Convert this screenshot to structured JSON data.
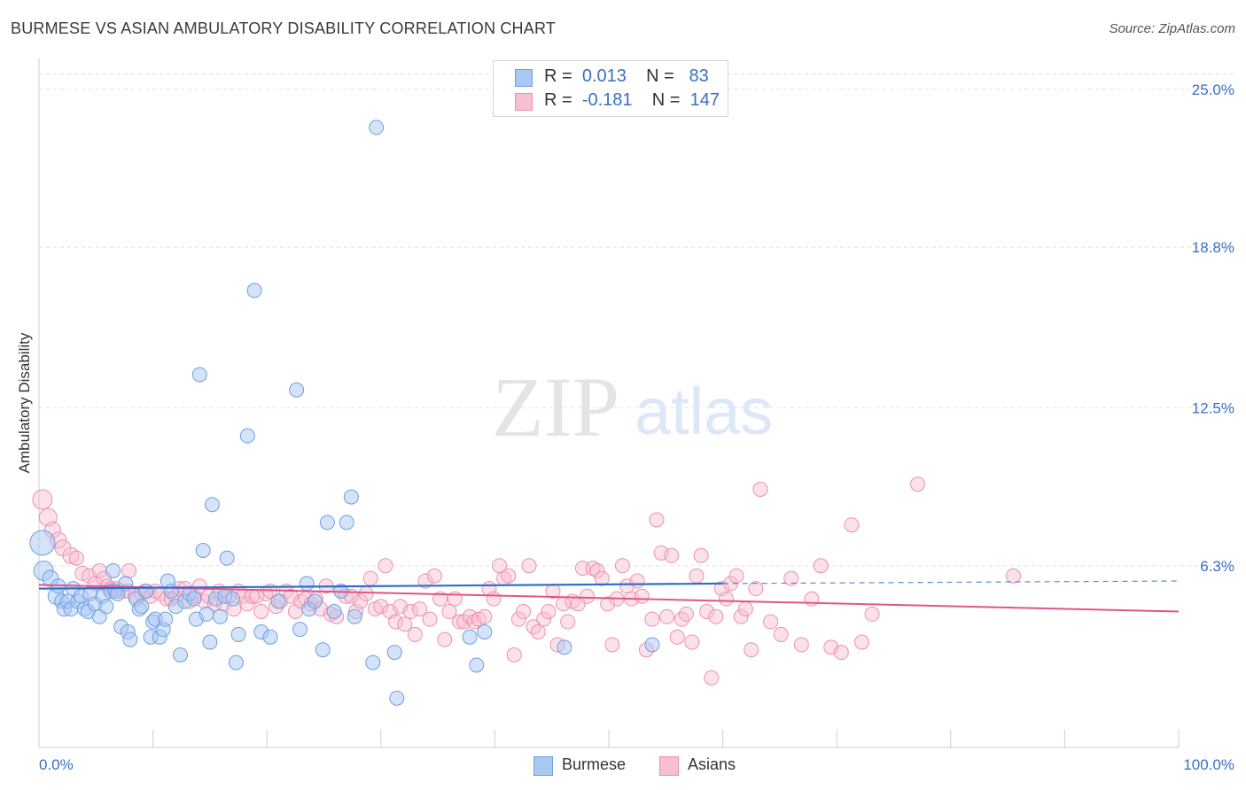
{
  "header": {
    "title": "BURMESE VS ASIAN AMBULATORY DISABILITY CORRELATION CHART",
    "source": "Source: ZipAtlas.com"
  },
  "legend": {
    "burmese": {
      "r_label": "R =",
      "r_value": "0.013",
      "n_label": "N =",
      "n_value": "83"
    },
    "asians": {
      "r_label": "R =",
      "r_value": "-0.181",
      "n_label": "N =",
      "n_value": "147"
    }
  },
  "bottom_legend": {
    "burmese": "Burmese",
    "asians": "Asians"
  },
  "watermark": {
    "zip": "ZIP",
    "atlas": "atlas"
  },
  "chart_data": {
    "type": "scatter",
    "title": "BURMESE VS ASIAN AMBULATORY DISABILITY CORRELATION CHART",
    "xlabel": "",
    "ylabel": "Ambulatory Disability",
    "xlim": [
      0,
      100
    ],
    "ylim": [
      0,
      26
    ],
    "x_tick_labels": [
      "0.0%",
      "100.0%"
    ],
    "y_ticks": [
      6.3,
      12.5,
      18.8,
      25.0
    ],
    "y_tick_labels": [
      "6.3%",
      "12.5%",
      "18.8%",
      "25.0%"
    ],
    "grid": true,
    "legend_position": "top-center",
    "colors": {
      "burmese_fill": "#a9c8f2",
      "burmese_stroke": "#6f9fe0",
      "burmese_line": "#2f6fcc",
      "asians_fill": "#f7bfd1",
      "asians_stroke": "#ee8fb0",
      "asians_line": "#e0558a",
      "tick_label": "#3a6fc4"
    },
    "series": [
      {
        "name": "Burmese",
        "trend": {
          "x0": 0,
          "y0": 5.4,
          "x1": 60,
          "y1": 5.6,
          "dashed_to_x": 100,
          "dashed_y1": 5.7
        },
        "points": [
          [
            0.3,
            7.2,
            14
          ],
          [
            0.4,
            6.1,
            11
          ],
          [
            1.0,
            5.8,
            9
          ],
          [
            1.5,
            5.1,
            9
          ],
          [
            1.7,
            5.5,
            8
          ],
          [
            2.0,
            4.9,
            8
          ],
          [
            2.2,
            4.6,
            8
          ],
          [
            2.5,
            4.9,
            8
          ],
          [
            2.8,
            4.6,
            8
          ],
          [
            3.0,
            5.4,
            8
          ],
          [
            3.4,
            4.9,
            8
          ],
          [
            3.7,
            5.1,
            8
          ],
          [
            4.0,
            4.6,
            8
          ],
          [
            4.3,
            4.5,
            8
          ],
          [
            4.5,
            5.2,
            8
          ],
          [
            4.9,
            4.8,
            8
          ],
          [
            5.3,
            4.3,
            8
          ],
          [
            5.6,
            5.1,
            8
          ],
          [
            5.9,
            4.7,
            8
          ],
          [
            6.3,
            5.3,
            8
          ],
          [
            6.5,
            6.1,
            8
          ],
          [
            6.7,
            5.3,
            8
          ],
          [
            6.9,
            5.2,
            8
          ],
          [
            7.2,
            3.9,
            8
          ],
          [
            7.6,
            5.6,
            8
          ],
          [
            7.8,
            3.7,
            8
          ],
          [
            8.0,
            3.4,
            8
          ],
          [
            8.5,
            5.0,
            8
          ],
          [
            8.8,
            4.6,
            8
          ],
          [
            9.0,
            4.7,
            8
          ],
          [
            9.4,
            5.3,
            8
          ],
          [
            9.8,
            3.5,
            8
          ],
          [
            10.0,
            4.1,
            8
          ],
          [
            10.2,
            4.2,
            8
          ],
          [
            10.6,
            3.5,
            8
          ],
          [
            10.9,
            3.8,
            8
          ],
          [
            11.1,
            4.2,
            8
          ],
          [
            11.3,
            5.7,
            8
          ],
          [
            11.6,
            5.3,
            8
          ],
          [
            12.0,
            4.7,
            8
          ],
          [
            12.4,
            2.8,
            8
          ],
          [
            12.8,
            4.9,
            8
          ],
          [
            13.2,
            5.2,
            8
          ],
          [
            13.6,
            5.0,
            8
          ],
          [
            13.8,
            4.2,
            8
          ],
          [
            14.1,
            13.8,
            8
          ],
          [
            14.4,
            6.9,
            8
          ],
          [
            14.7,
            4.4,
            8
          ],
          [
            15.0,
            3.3,
            8
          ],
          [
            15.2,
            8.7,
            8
          ],
          [
            15.5,
            5.0,
            8
          ],
          [
            15.9,
            4.3,
            8
          ],
          [
            16.3,
            5.1,
            8
          ],
          [
            16.5,
            6.6,
            8
          ],
          [
            17.0,
            5.0,
            8
          ],
          [
            17.3,
            2.5,
            8
          ],
          [
            17.5,
            3.6,
            8
          ],
          [
            18.3,
            11.4,
            8
          ],
          [
            18.9,
            17.1,
            8
          ],
          [
            19.5,
            3.7,
            8
          ],
          [
            20.3,
            3.5,
            8
          ],
          [
            21.0,
            4.9,
            8
          ],
          [
            22.6,
            13.2,
            8
          ],
          [
            22.9,
            3.8,
            8
          ],
          [
            23.5,
            5.6,
            8
          ],
          [
            23.7,
            4.6,
            8
          ],
          [
            24.2,
            4.9,
            8
          ],
          [
            24.9,
            3.0,
            8
          ],
          [
            25.3,
            8.0,
            8
          ],
          [
            25.9,
            4.5,
            8
          ],
          [
            26.5,
            5.3,
            8
          ],
          [
            27.0,
            8.0,
            8
          ],
          [
            27.4,
            9.0,
            8
          ],
          [
            27.7,
            4.3,
            8
          ],
          [
            29.3,
            2.5,
            8
          ],
          [
            29.6,
            23.5,
            8
          ],
          [
            31.2,
            2.9,
            8
          ],
          [
            31.4,
            1.1,
            8
          ],
          [
            37.8,
            3.5,
            8
          ],
          [
            38.4,
            2.4,
            8
          ],
          [
            39.1,
            3.7,
            8
          ],
          [
            46.1,
            3.1,
            8
          ],
          [
            53.8,
            3.2,
            8
          ]
        ]
      },
      {
        "name": "Asians",
        "trend": {
          "x0": 0,
          "y0": 5.55,
          "x1": 100,
          "y1": 4.5
        },
        "points": [
          [
            0.3,
            8.9,
            11
          ],
          [
            0.8,
            8.2,
            10
          ],
          [
            1.2,
            7.7,
            9
          ],
          [
            1.7,
            7.3,
            9
          ],
          [
            2.1,
            7.0,
            9
          ],
          [
            2.8,
            6.7,
            9
          ],
          [
            3.3,
            6.6,
            8
          ],
          [
            3.8,
            6.0,
            8
          ],
          [
            4.4,
            5.9,
            8
          ],
          [
            4.9,
            5.6,
            8
          ],
          [
            5.3,
            6.1,
            8
          ],
          [
            5.7,
            5.8,
            8
          ],
          [
            6.0,
            5.5,
            8
          ],
          [
            6.3,
            5.4,
            8
          ],
          [
            6.8,
            5.4,
            8
          ],
          [
            7.3,
            5.3,
            8
          ],
          [
            7.8,
            5.3,
            8
          ],
          [
            7.9,
            6.1,
            8
          ],
          [
            8.5,
            5.1,
            8
          ],
          [
            9.0,
            5.2,
            8
          ],
          [
            9.3,
            5.3,
            8
          ],
          [
            9.8,
            5.1,
            8
          ],
          [
            10.2,
            5.3,
            8
          ],
          [
            10.7,
            5.2,
            8
          ],
          [
            11.2,
            5.0,
            8
          ],
          [
            11.6,
            5.0,
            8
          ],
          [
            12.0,
            5.1,
            8
          ],
          [
            12.3,
            5.4,
            8
          ],
          [
            12.8,
            5.4,
            8
          ],
          [
            13.2,
            4.9,
            8
          ],
          [
            13.6,
            5.1,
            8
          ],
          [
            14.1,
            5.5,
            8
          ],
          [
            14.5,
            4.9,
            8
          ],
          [
            14.9,
            5.1,
            8
          ],
          [
            15.4,
            4.8,
            8
          ],
          [
            15.8,
            5.3,
            8
          ],
          [
            16.2,
            4.8,
            8
          ],
          [
            16.6,
            5.1,
            8
          ],
          [
            17.1,
            4.6,
            8
          ],
          [
            17.5,
            5.3,
            8
          ],
          [
            17.9,
            5.1,
            8
          ],
          [
            18.3,
            4.8,
            8
          ],
          [
            18.7,
            5.1,
            8
          ],
          [
            19.1,
            5.1,
            8
          ],
          [
            19.5,
            4.5,
            8
          ],
          [
            19.9,
            5.2,
            8
          ],
          [
            20.3,
            5.3,
            8
          ],
          [
            20.8,
            4.7,
            8
          ],
          [
            21.2,
            4.9,
            8
          ],
          [
            21.7,
            5.3,
            8
          ],
          [
            22.1,
            5.1,
            8
          ],
          [
            22.5,
            4.5,
            8
          ],
          [
            23.0,
            4.9,
            8
          ],
          [
            23.4,
            5.0,
            8
          ],
          [
            23.9,
            4.8,
            8
          ],
          [
            24.3,
            5.0,
            8
          ],
          [
            24.7,
            4.6,
            8
          ],
          [
            25.2,
            5.5,
            8
          ],
          [
            25.6,
            4.4,
            8
          ],
          [
            26.1,
            4.3,
            8
          ],
          [
            26.5,
            5.3,
            8
          ],
          [
            26.9,
            5.1,
            8
          ],
          [
            27.4,
            5.1,
            8
          ],
          [
            27.8,
            4.5,
            8
          ],
          [
            28.2,
            4.9,
            8
          ],
          [
            28.7,
            5.2,
            8
          ],
          [
            29.1,
            5.8,
            8
          ],
          [
            29.5,
            4.6,
            8
          ],
          [
            30.0,
            4.7,
            8
          ],
          [
            30.4,
            6.3,
            8
          ],
          [
            30.8,
            4.5,
            8
          ],
          [
            31.3,
            4.1,
            8
          ],
          [
            31.7,
            4.7,
            8
          ],
          [
            32.1,
            4.0,
            8
          ],
          [
            32.6,
            4.5,
            8
          ],
          [
            33.0,
            3.6,
            8
          ],
          [
            33.4,
            4.6,
            8
          ],
          [
            33.9,
            5.7,
            8
          ],
          [
            34.3,
            4.2,
            8
          ],
          [
            34.7,
            5.9,
            8
          ],
          [
            35.2,
            5.0,
            8
          ],
          [
            35.6,
            3.4,
            8
          ],
          [
            36.0,
            4.5,
            8
          ],
          [
            36.5,
            5.0,
            8
          ],
          [
            36.9,
            4.1,
            8
          ],
          [
            37.3,
            4.1,
            8
          ],
          [
            37.8,
            4.3,
            8
          ],
          [
            38.2,
            4.1,
            8
          ],
          [
            38.6,
            4.2,
            8
          ],
          [
            39.1,
            4.3,
            8
          ],
          [
            39.5,
            5.4,
            8
          ],
          [
            39.9,
            5.0,
            8
          ],
          [
            40.4,
            6.3,
            8
          ],
          [
            40.8,
            5.8,
            8
          ],
          [
            41.2,
            5.9,
            8
          ],
          [
            41.7,
            2.8,
            8
          ],
          [
            42.1,
            4.2,
            8
          ],
          [
            42.5,
            4.5,
            8
          ],
          [
            43.0,
            6.3,
            8
          ],
          [
            43.4,
            3.9,
            8
          ],
          [
            43.8,
            3.7,
            8
          ],
          [
            44.3,
            4.2,
            8
          ],
          [
            44.7,
            4.5,
            8
          ],
          [
            45.1,
            5.3,
            8
          ],
          [
            45.5,
            3.2,
            8
          ],
          [
            46.0,
            4.8,
            8
          ],
          [
            46.4,
            4.1,
            8
          ],
          [
            46.8,
            4.9,
            8
          ],
          [
            47.3,
            4.8,
            8
          ],
          [
            47.7,
            6.2,
            8
          ],
          [
            48.1,
            5.1,
            8
          ],
          [
            48.6,
            6.2,
            8
          ],
          [
            49.0,
            6.1,
            8
          ],
          [
            49.4,
            5.8,
            8
          ],
          [
            49.9,
            4.8,
            8
          ],
          [
            50.3,
            3.2,
            8
          ],
          [
            50.7,
            5.0,
            8
          ],
          [
            51.2,
            6.3,
            8
          ],
          [
            51.6,
            5.5,
            8
          ],
          [
            52.0,
            5.0,
            8
          ],
          [
            52.5,
            5.7,
            8
          ],
          [
            52.9,
            5.1,
            8
          ],
          [
            53.3,
            3.0,
            8
          ],
          [
            53.8,
            4.2,
            8
          ],
          [
            54.2,
            8.1,
            8
          ],
          [
            54.6,
            6.8,
            8
          ],
          [
            55.1,
            4.3,
            8
          ],
          [
            55.5,
            6.7,
            8
          ],
          [
            56.0,
            3.5,
            8
          ],
          [
            56.4,
            4.2,
            8
          ],
          [
            56.8,
            4.4,
            8
          ],
          [
            57.3,
            3.3,
            8
          ],
          [
            57.7,
            5.9,
            8
          ],
          [
            58.1,
            6.7,
            8
          ],
          [
            58.6,
            4.5,
            8
          ],
          [
            59.0,
            1.9,
            8
          ],
          [
            59.4,
            4.3,
            8
          ],
          [
            59.9,
            5.4,
            8
          ],
          [
            60.3,
            5.0,
            8
          ],
          [
            60.7,
            5.6,
            8
          ],
          [
            61.2,
            5.9,
            8
          ],
          [
            61.6,
            4.3,
            8
          ],
          [
            62.0,
            4.6,
            8
          ],
          [
            62.5,
            3.0,
            8
          ],
          [
            62.9,
            5.4,
            8
          ],
          [
            63.3,
            9.3,
            8
          ],
          [
            64.2,
            4.1,
            8
          ],
          [
            65.1,
            3.6,
            8
          ],
          [
            66.0,
            5.8,
            8
          ],
          [
            66.9,
            3.2,
            8
          ],
          [
            67.8,
            5.0,
            8
          ],
          [
            68.6,
            6.3,
            8
          ],
          [
            69.5,
            3.1,
            8
          ],
          [
            70.4,
            2.9,
            8
          ],
          [
            71.3,
            7.9,
            8
          ],
          [
            72.2,
            3.3,
            8
          ],
          [
            73.1,
            4.4,
            8
          ],
          [
            77.1,
            9.5,
            8
          ],
          [
            85.5,
            5.9,
            8
          ]
        ]
      }
    ]
  }
}
